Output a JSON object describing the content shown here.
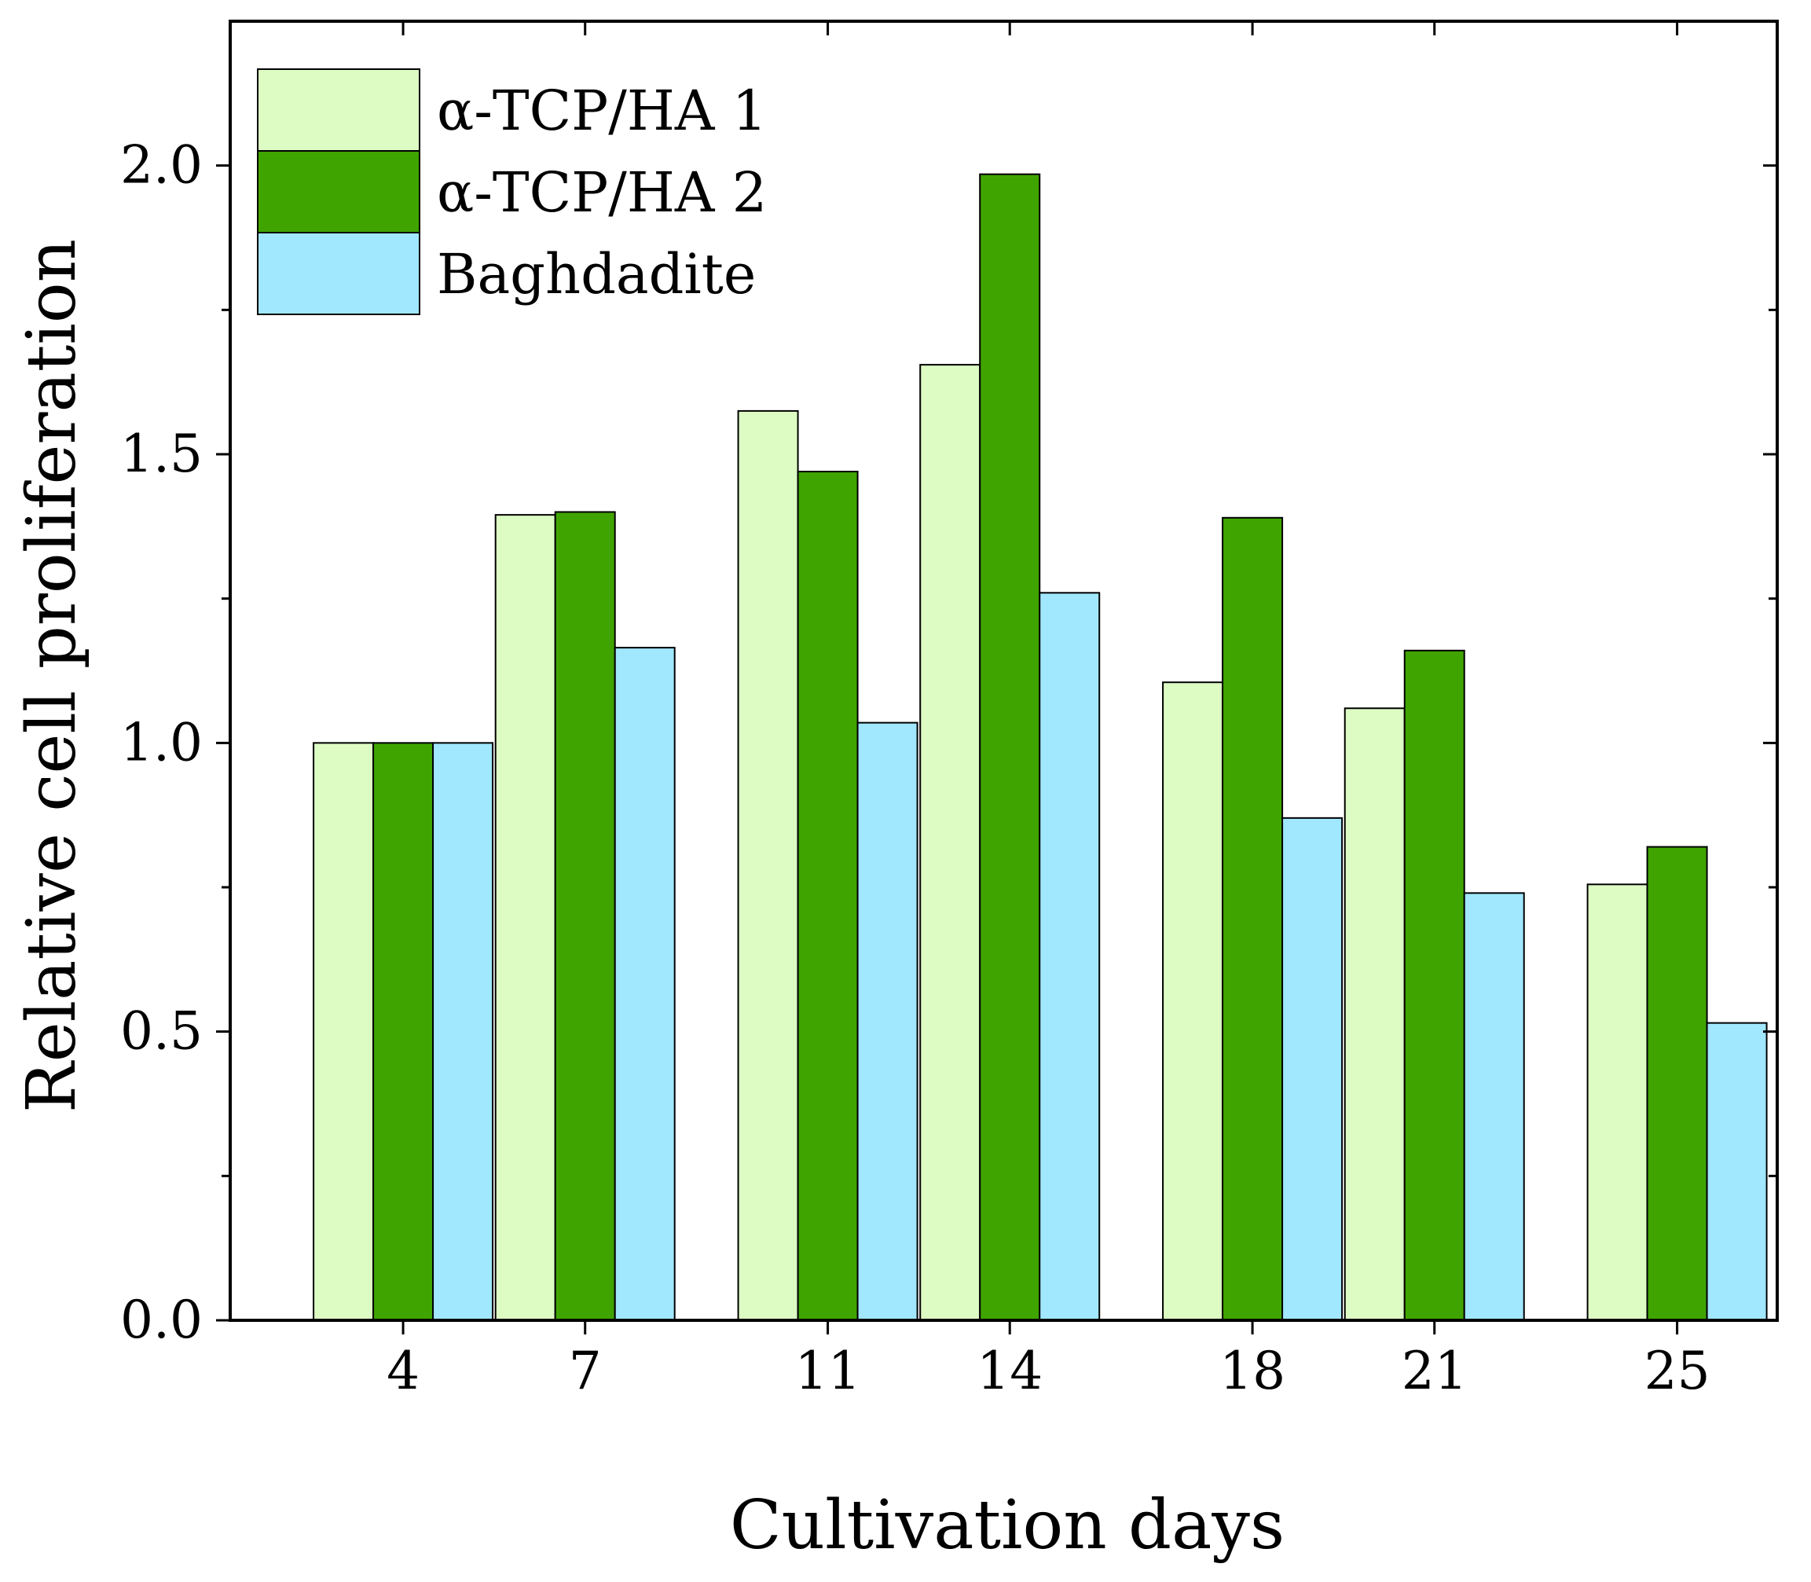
{
  "chart_data": {
    "type": "bar",
    "title": "",
    "xlabel": "Cultivation days",
    "ylabel": "Relative cell proliferation",
    "x": [
      4,
      7,
      11,
      14,
      18,
      21,
      25
    ],
    "categories": [
      "4",
      "7",
      "11",
      "14",
      "18",
      "21",
      "25"
    ],
    "xlim": [
      1.15,
      26.65
    ],
    "ylim": [
      0,
      2.25
    ],
    "yticks": [
      0.0,
      0.5,
      1.0,
      1.5,
      2.0
    ],
    "ytick_labels": [
      "0.0",
      "0.5",
      "1.0",
      "1.5",
      "2.0"
    ],
    "yminor_ticks": [
      0.25,
      0.75,
      1.25,
      1.75
    ],
    "grid": false,
    "legend_position": "top-left",
    "series": [
      {
        "name": "α-TCP/HA 1",
        "color": "#ddfcc4",
        "values": [
          1.0,
          1.395,
          1.575,
          1.655,
          1.105,
          1.06,
          0.755
        ]
      },
      {
        "name": "α-TCP/HA 2",
        "color": "#40a400",
        "values": [
          1.0,
          1.4,
          1.47,
          1.985,
          1.39,
          1.16,
          0.82
        ]
      },
      {
        "name": "Baghdadite",
        "color": "#a1e7fd",
        "values": [
          1.0,
          1.165,
          1.035,
          1.26,
          0.87,
          0.74,
          0.515
        ]
      }
    ]
  }
}
